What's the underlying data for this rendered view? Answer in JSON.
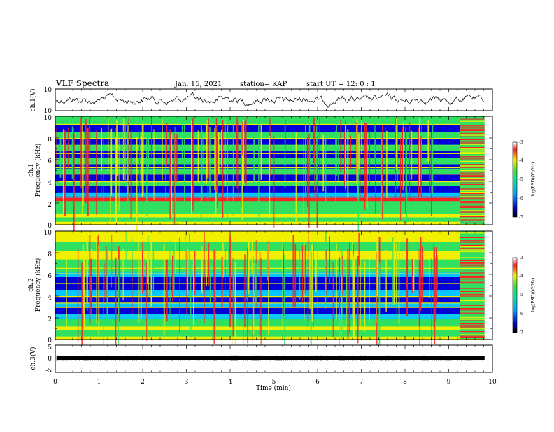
{
  "header": {
    "title": "VLF Spectra",
    "date": "Jan. 15, 2021",
    "station": "station= KAP",
    "start": "start UT = 12: 0 : 1"
  },
  "xaxis": {
    "label": "Time (min)",
    "ticks": [
      "0",
      "1",
      "2",
      "3",
      "4",
      "5",
      "6",
      "7",
      "8",
      "9",
      "10"
    ]
  },
  "panels": {
    "ch1_wave": {
      "ylabel": "ch.1(V)",
      "ticks": [
        "10",
        "-10"
      ]
    },
    "ch1_spec": {
      "ylabel_top": "ch.1",
      "ylabel_bottom": "Frequency (kHz)",
      "ticks": [
        "10",
        "8",
        "6",
        "4",
        "2",
        "0"
      ]
    },
    "ch2_spec": {
      "ylabel_top": "ch.2",
      "ylabel_bottom": "Frequency (kHz)",
      "ticks": [
        "10",
        "8",
        "6",
        "4",
        "2",
        "0"
      ]
    },
    "ch3_wave": {
      "ylabel": "ch.3(V)",
      "ticks": [
        "5",
        "0",
        "-5"
      ]
    }
  },
  "colorbars": [
    {
      "label": "log(PSD)(V²/Hz)",
      "ticks": [
        "-3",
        "-4",
        "-5",
        "-6",
        "-7"
      ]
    },
    {
      "label": "log(PSD)(V²/Hz)",
      "ticks": [
        "-3",
        "-4",
        "-5",
        "-6",
        "-7"
      ]
    }
  ],
  "colors": {
    "blue": "#0000d8",
    "cyan": "#00c8ff",
    "green": "#30e060",
    "yellow": "#f0f000",
    "red": "#ff2020"
  },
  "chart_data": [
    {
      "type": "line",
      "title": "VLF Spectra",
      "ylabel": "ch.1(V)",
      "xlabel": "Time (min)",
      "xlim": [
        0,
        10
      ],
      "ylim": [
        -10,
        10
      ],
      "series": [
        {
          "x_range": [
            0,
            9.8
          ],
          "values_range": [
            -6,
            6
          ]
        }
      ]
    },
    {
      "type": "heatmap",
      "ylabel": "ch.1 Frequency (kHz)",
      "xlim": [
        0,
        10
      ],
      "ylim": [
        0,
        10
      ],
      "data_x_range": [
        0,
        9.8
      ],
      "zlabel": "log(PSD)(V²/Hz)",
      "zlim": [
        -7,
        -3
      ]
    },
    {
      "type": "heatmap",
      "ylabel": "ch.2 Frequency (kHz)",
      "xlim": [
        0,
        10
      ],
      "ylim": [
        0,
        10
      ],
      "data_x_range": [
        0,
        9.8
      ],
      "zlabel": "log(PSD)(V²/Hz)",
      "zlim": [
        -7,
        -3
      ]
    },
    {
      "type": "line",
      "ylabel": "ch.3(V)",
      "xlabel": "Time (min)",
      "xlim": [
        0,
        10
      ],
      "ylim": [
        -5,
        5
      ],
      "series": [
        {
          "x_range": [
            0,
            9.8
          ],
          "values_range": [
            -1,
            1
          ]
        }
      ]
    }
  ]
}
